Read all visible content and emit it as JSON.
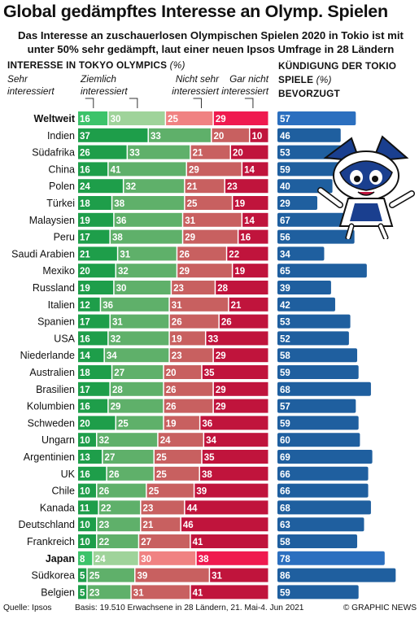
{
  "title": "Global gedämpftes Interesse an Olymp. Spielen",
  "subtitle": "Das Interesse an zuschauerlosen Olympischen Spielen 2020 in Tokio ist mit unter 50% sehr gedämpft, laut einer neuen Ipsos Umfrage in 28 Ländern",
  "left_header": {
    "text": "INTERESSE IN TOKYO OLYMPICS",
    "unit": "(%)"
  },
  "right_header": {
    "line1": "KÜNDIGUNG DER TOKIO",
    "line2_text": "SPIELE",
    "line2_unit": "(%)",
    "line3": "BEVORZUGT"
  },
  "interest_categories": [
    {
      "line1": "Sehr",
      "line2": "interessiert"
    },
    {
      "line1": "Ziemlich",
      "line2": "interessiert"
    },
    {
      "line1": "Nicht sehr",
      "line2": "interessiert"
    },
    {
      "line1": "Gar nicht",
      "line2": "interessiert"
    }
  ],
  "colors": {
    "very": "#1e9e4a",
    "quite": "#5fb06a",
    "not_very": "#c86060",
    "not_at_all": "#c0143c",
    "very_light": "#3cc36a",
    "quite_light": "#9fd39a",
    "not_very_light": "#f08282",
    "not_at_all_light": "#ef1a4f",
    "cancel": "#1f5f9f",
    "cancel_light": "#2b6fbf"
  },
  "chart_data": {
    "type": "bar",
    "categories": [
      "Weltweit",
      "Indien",
      "Südafrika",
      "China",
      "Polen",
      "Türkei",
      "Malaysien",
      "Peru",
      "Saudi Arabien",
      "Mexiko",
      "Russland",
      "Italien",
      "Spanien",
      "USA",
      "Niederlande",
      "Australien",
      "Brasilien",
      "Kolumbien",
      "Schweden",
      "Ungarn",
      "Argentinien",
      "UK",
      "Chile",
      "Kanada",
      "Deutschland",
      "Frankreich",
      "Japan",
      "Südkorea",
      "Belgien"
    ],
    "highlighted": [
      "Weltweit",
      "Japan"
    ],
    "series": [
      {
        "name": "Sehr interessiert",
        "values": [
          16,
          37,
          26,
          16,
          24,
          18,
          19,
          17,
          21,
          20,
          19,
          12,
          17,
          16,
          14,
          18,
          17,
          16,
          20,
          10,
          13,
          16,
          10,
          11,
          10,
          10,
          8,
          5,
          5
        ]
      },
      {
        "name": "Ziemlich interessiert",
        "values": [
          30,
          33,
          33,
          41,
          32,
          38,
          36,
          38,
          31,
          32,
          30,
          36,
          31,
          32,
          34,
          27,
          28,
          29,
          25,
          32,
          27,
          26,
          26,
          22,
          23,
          22,
          24,
          25,
          23
        ]
      },
      {
        "name": "Nicht sehr interessiert",
        "values": [
          25,
          20,
          21,
          29,
          21,
          25,
          31,
          29,
          26,
          29,
          23,
          31,
          26,
          19,
          23,
          20,
          26,
          26,
          19,
          24,
          25,
          25,
          25,
          23,
          21,
          27,
          30,
          39,
          31
        ]
      },
      {
        "name": "Gar nicht interessiert",
        "values": [
          29,
          10,
          20,
          14,
          23,
          19,
          14,
          16,
          22,
          19,
          28,
          21,
          26,
          33,
          29,
          35,
          29,
          29,
          36,
          34,
          35,
          38,
          39,
          44,
          46,
          41,
          38,
          31,
          41
        ]
      }
    ],
    "cancel_values": [
      57,
      46,
      53,
      59,
      40,
      29,
      67,
      56,
      34,
      65,
      39,
      42,
      53,
      52,
      58,
      59,
      68,
      57,
      59,
      60,
      69,
      66,
      66,
      68,
      63,
      58,
      78,
      86,
      59
    ],
    "cancel_title": "KÜNDIGUNG DER TOKIO SPIELE (%) BEVORZUGT",
    "xlim": [
      0,
      100
    ]
  },
  "footer": {
    "source": "Quelle: Ipsos",
    "basis": "Basis: 19.510 Erwachsene in 28 Ländern, 21. Mai-4. Jun 2021",
    "credit": "© GRAPHIC NEWS"
  }
}
